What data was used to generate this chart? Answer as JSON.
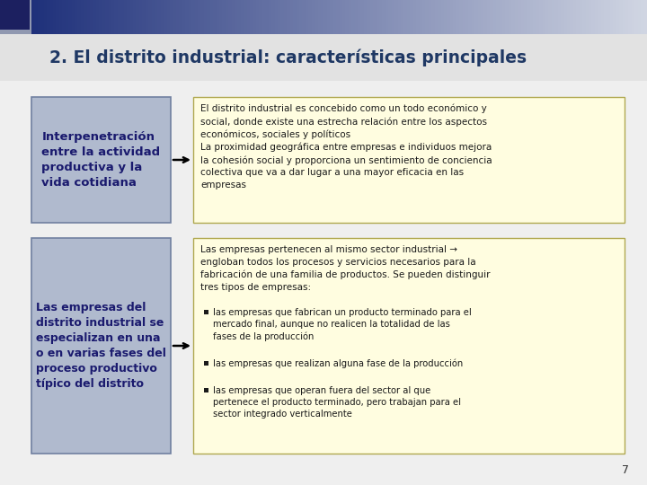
{
  "title": "2. El distrito industrial: características principales",
  "title_fontsize": 13.5,
  "title_color": "#1F3864",
  "background_color": "#D8D8D8",
  "top_bar_color1": "#2B3A7A",
  "top_bar_color2": "#C8CCD8",
  "left_box1_text": "Interpenetración\nentre la actividad\nproductiva y la\nvida cotidiana",
  "left_box2_text": "Las empresas del\ndistrito industrial se\nespecializan en una\no en varias fases del\nproceso productivo\ntípico del distrito",
  "left_box_bg": "#B0BACE",
  "left_box_border": "#7080A0",
  "right_box1_text": "El distrito industrial es concebido como un todo económico y\nsocial, donde existe una estrecha relación entre los aspectos\neconómicos, sociales y políticos\nLa proximidad geográfica entre empresas e individuos mejora\nla cohesión social y proporciona un sentimiento de conciencia\ncolectiva que va a dar lugar a una mayor eficacia en las\nempresas",
  "right_box2_intro": "Las empresas pertenecen al mismo sector industrial →\nengloban todos los procesos y servicios necesarios para la\nfabricación de una familia de productos. Se pueden distinguir\ntres tipos de empresas:",
  "right_box2_bullets": [
    "las empresas que fabrican un producto terminado para el\nmercado final, aunque no realicen la totalidad de las\nfases de la producción",
    "las empresas que realizan alguna fase de la producción",
    "las empresas que operan fuera del sector al que\npertenece el producto terminado, pero trabajan para el\nsector integrado verticalmente"
  ],
  "right_box_bg": "#FFFDE0",
  "right_box_border": "#B0A850",
  "page_number": "7",
  "arrow_color": "#000000",
  "title_area_bg": "#E0E0E0",
  "content_bg": "#EBEBEB",
  "text_color_left": "#1A1A6E",
  "text_color_right": "#1A1A1A"
}
